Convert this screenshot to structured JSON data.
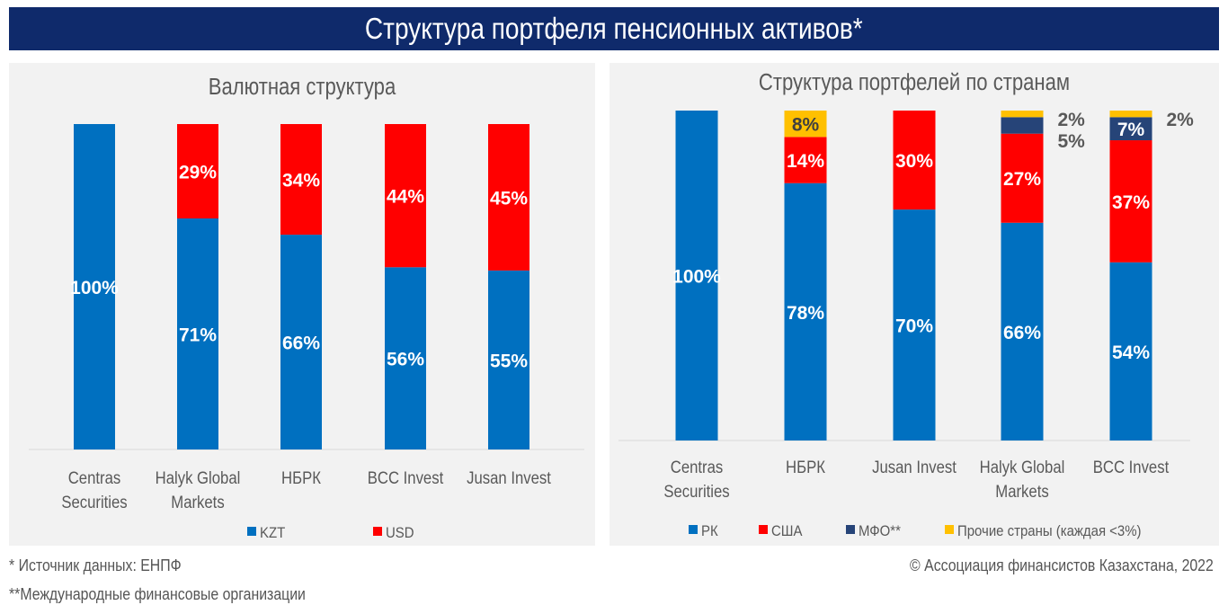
{
  "title": "Структура портфеля пенсионных активов*",
  "footnotes": {
    "source": "* Источник данных: ЕНПФ",
    "mfo": "**Международные финансовые организации",
    "copyright": "© Ассоциация финансистов Казахстана, 2022"
  },
  "chart_data": [
    {
      "type": "bar",
      "stacked": true,
      "percent": true,
      "title": "Валютная структура",
      "categories": [
        [
          "Centras",
          "Securities"
        ],
        [
          "Halyk Global",
          "Markets"
        ],
        [
          "НБРК"
        ],
        [
          "BCC Invest"
        ],
        [
          "Jusan Invest"
        ]
      ],
      "series": [
        {
          "name": "KZT",
          "color": "#0070c0",
          "values": [
            100,
            71,
            66,
            56,
            55
          ]
        },
        {
          "name": "USD",
          "color": "#ff0000",
          "values": [
            0,
            29,
            34,
            44,
            45
          ]
        }
      ],
      "ylim": [
        0,
        100
      ],
      "legend": "bottom"
    },
    {
      "type": "bar",
      "stacked": true,
      "percent": true,
      "title": "Структура портфелей по странам",
      "categories": [
        [
          "Centras",
          "Securities"
        ],
        [
          "НБРК"
        ],
        [
          "Jusan Invest"
        ],
        [
          "Halyk Global",
          "Markets"
        ],
        [
          "BCC Invest"
        ]
      ],
      "series": [
        {
          "name": "РК",
          "color": "#0070c0",
          "values": [
            100,
            78,
            70,
            66,
            54
          ]
        },
        {
          "name": "США",
          "color": "#ff0000",
          "values": [
            0,
            14,
            30,
            27,
            37
          ]
        },
        {
          "name": "МФО**",
          "color": "#264478",
          "values": [
            0,
            0,
            0,
            5,
            7
          ]
        },
        {
          "name": "Прочие страны (каждая <3%)",
          "color": "#ffc000",
          "values": [
            0,
            8,
            0,
            2,
            2
          ]
        }
      ],
      "ylim": [
        0,
        100
      ],
      "legend": "bottom"
    }
  ]
}
